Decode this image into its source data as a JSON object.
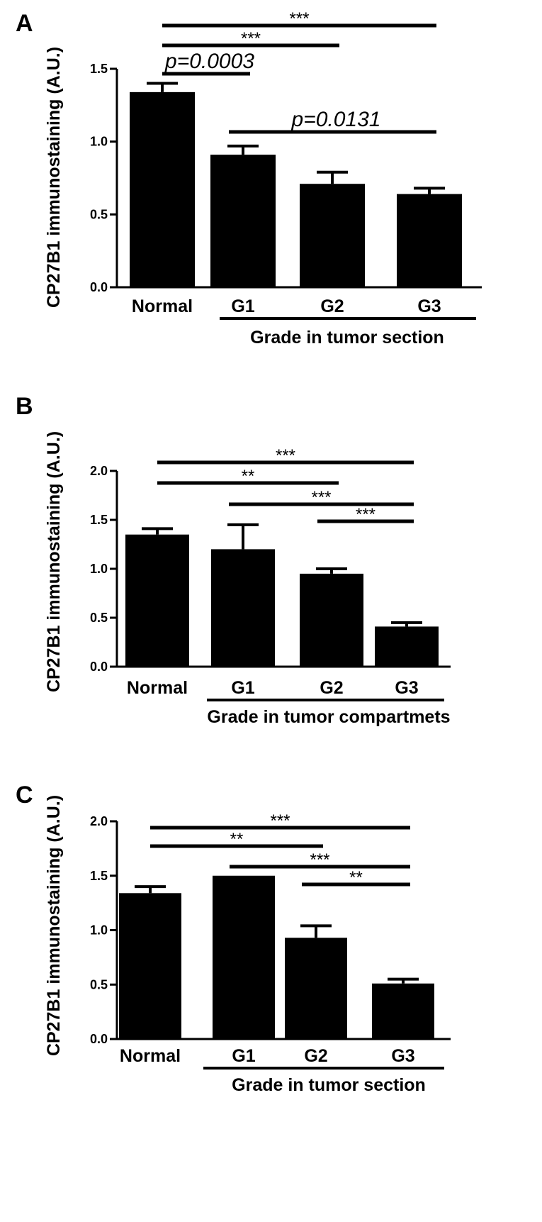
{
  "chart_data": [
    {
      "panel": "A",
      "type": "bar",
      "categories": [
        "Normal",
        "G1",
        "G2",
        "G3"
      ],
      "values": [
        1.34,
        0.91,
        0.71,
        0.64
      ],
      "errors": [
        0.06,
        0.06,
        0.08,
        0.04
      ],
      "ylabel": "CP27B1 immunostaining (A.U.)",
      "ylim": [
        0,
        1.5
      ],
      "yticks": [
        "0.0",
        "0.5",
        "1.0",
        "1.5"
      ],
      "group_label": "Grade in tumor section",
      "significance": [
        {
          "from": "Normal",
          "to": "G3",
          "label": "***"
        },
        {
          "from": "Normal",
          "to": "G2",
          "label": "***"
        },
        {
          "from": "Normal",
          "to": "G1",
          "label": "p=0.0003"
        },
        {
          "from": "G1",
          "to": "G3",
          "label": "p=0.0131"
        }
      ],
      "color": "#000000"
    },
    {
      "panel": "B",
      "type": "bar",
      "categories": [
        "Normal",
        "G1",
        "G2",
        "G3"
      ],
      "values": [
        1.35,
        1.2,
        0.95,
        0.41
      ],
      "errors": [
        0.06,
        0.25,
        0.05,
        0.04
      ],
      "ylabel": "CP27B1 immunostaining (A.U.)",
      "ylim": [
        0,
        2.0
      ],
      "yticks": [
        "0.0",
        "0.5",
        "1.0",
        "1.5",
        "2.0"
      ],
      "group_label": "Grade in tumor compartmets",
      "significance": [
        {
          "from": "Normal",
          "to": "G3",
          "label": "***"
        },
        {
          "from": "Normal",
          "to": "G2",
          "label": "**"
        },
        {
          "from": "G1",
          "to": "G3",
          "label": "***"
        },
        {
          "from": "G2",
          "to": "G3",
          "label": "***"
        }
      ],
      "color": "#000000"
    },
    {
      "panel": "C",
      "type": "bar",
      "categories": [
        "Normal",
        "G1",
        "G2",
        "G3"
      ],
      "values": [
        1.34,
        1.5,
        0.93,
        0.51
      ],
      "errors": [
        0.06,
        0.0,
        0.11,
        0.04
      ],
      "ylabel": "CP27B1 immunostaining (A.U.)",
      "ylim": [
        0,
        2.0
      ],
      "yticks": [
        "0.0",
        "0.5",
        "1.0",
        "1.5",
        "2.0"
      ],
      "group_label": "Grade in tumor section",
      "significance": [
        {
          "from": "Normal",
          "to": "G3",
          "label": "***"
        },
        {
          "from": "Normal",
          "to": "G2",
          "label": "**"
        },
        {
          "from": "G1",
          "to": "G3",
          "label": "***"
        },
        {
          "from": "G2",
          "to": "G3",
          "label": "**"
        }
      ],
      "color": "#000000"
    }
  ]
}
